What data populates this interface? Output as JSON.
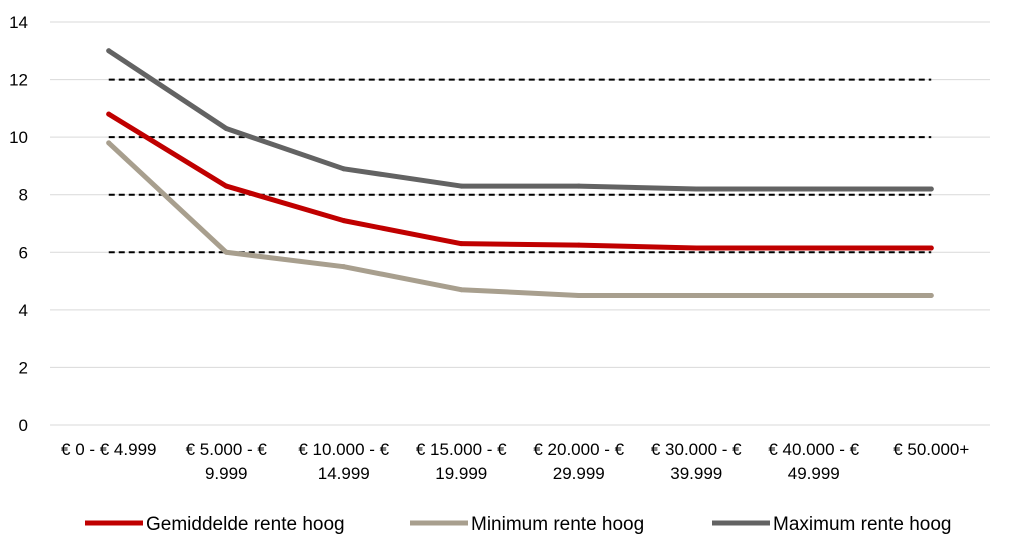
{
  "chart_data": {
    "type": "line",
    "categories": [
      [
        "€ 0 - € 4.999"
      ],
      [
        "€ 5.000 - €",
        "9.999"
      ],
      [
        "€ 10.000 - €",
        "14.999"
      ],
      [
        "€ 15.000 - €",
        "19.999"
      ],
      [
        "€ 20.000 - €",
        "29.999"
      ],
      [
        "€ 30.000 - €",
        "39.999"
      ],
      [
        "€ 40.000 - €",
        "49.999"
      ],
      [
        "€ 50.000+"
      ]
    ],
    "series": [
      {
        "name": "Gemiddelde rente hoog",
        "color": "#c00000",
        "values": [
          10.8,
          8.3,
          7.1,
          6.3,
          6.25,
          6.15,
          6.15,
          6.15
        ]
      },
      {
        "name": "Minimum rente hoog",
        "color": "#a89f8e",
        "values": [
          9.8,
          6.0,
          5.5,
          4.7,
          4.5,
          4.5,
          4.5,
          4.5
        ]
      },
      {
        "name": "Maximum rente hoog",
        "color": "#636363",
        "values": [
          13.0,
          10.3,
          8.9,
          8.3,
          8.3,
          8.2,
          8.2,
          8.2
        ]
      }
    ],
    "ylim": [
      0,
      14
    ],
    "yticks": [
      "0",
      "2",
      "4",
      "6",
      "8",
      "10",
      "12",
      "14"
    ],
    "dashed_reference_lines": [
      6,
      8,
      10,
      12
    ],
    "grid": true,
    "legend_position": "bottom"
  }
}
